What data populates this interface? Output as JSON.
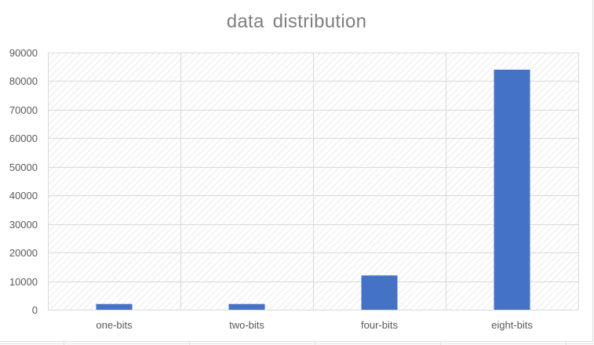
{
  "chart_data": {
    "type": "bar",
    "title": "data  distribution",
    "categories": [
      "one-bits",
      "two-bits",
      "four-bits",
      "eight-bits"
    ],
    "values": [
      2000,
      2000,
      12000,
      84000
    ],
    "ylim": [
      0,
      90000
    ],
    "yticks": [
      0,
      10000,
      20000,
      30000,
      40000,
      50000,
      60000,
      70000,
      80000,
      90000
    ],
    "xlabel": "",
    "ylabel": "",
    "grid": true,
    "legend": "none",
    "bar_color": "#4472c4",
    "gridline_color": "#d9d9d9",
    "plot_pattern": "diagonal-hatch"
  }
}
